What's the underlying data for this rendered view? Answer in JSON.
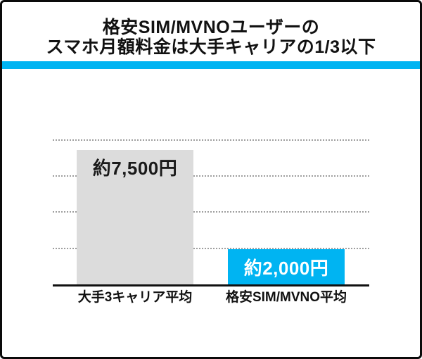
{
  "page": {
    "background_color": "#ffffff",
    "border_color": "#0a0a0a"
  },
  "header": {
    "title_line1": "格安SIM/MVNOユーザーの",
    "title_line2": "スマホ月額料金は大手キャリアの1/3以下",
    "divider_color": "#00b4f2"
  },
  "chart_data": {
    "type": "bar",
    "title": "格安SIM/MVNOユーザーのスマホ月額料金は大手キャリアの1/3以下",
    "categories": [
      "大手3キャリア平均",
      "格安SIM/MVNO平均"
    ],
    "values": [
      7500,
      2000
    ],
    "value_labels": [
      "約7,500円",
      "約2,000円"
    ],
    "value_label_colors": [
      "#1a1a1a",
      "#ffffff"
    ],
    "value_label_valign": [
      "top",
      "center"
    ],
    "bar_colors": [
      "#dcdcdc",
      "#00b4f2"
    ],
    "unit": "円",
    "ylim": [
      0,
      8000
    ],
    "gridline_values": [
      2000,
      4000,
      6000,
      8000
    ],
    "grid_style": "dotted",
    "grid_color": "#9e9e9e",
    "axis_color": "#111111",
    "legend": "none"
  }
}
